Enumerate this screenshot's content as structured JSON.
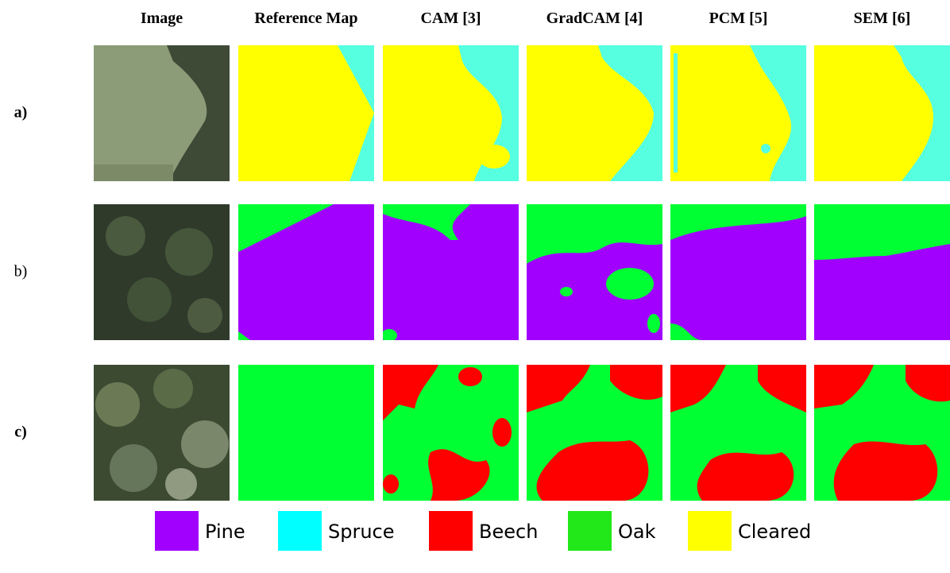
{
  "columns": [
    "Image",
    "Reference Map",
    "CAM [3]",
    "GradCAM [4]",
    "PCM [5]",
    "SEM [6]"
  ],
  "rows": [
    "a)",
    "b)",
    "c)"
  ],
  "legend": [
    {
      "label": "Pine",
      "color": "#a100ff"
    },
    {
      "label": "Spruce",
      "color": "#00ffff"
    },
    {
      "label": "Beech",
      "color": "#ff0000"
    },
    {
      "label": "Oak",
      "color": "#22e81a"
    },
    {
      "label": "Cleared",
      "color": "#ffff00"
    }
  ]
}
